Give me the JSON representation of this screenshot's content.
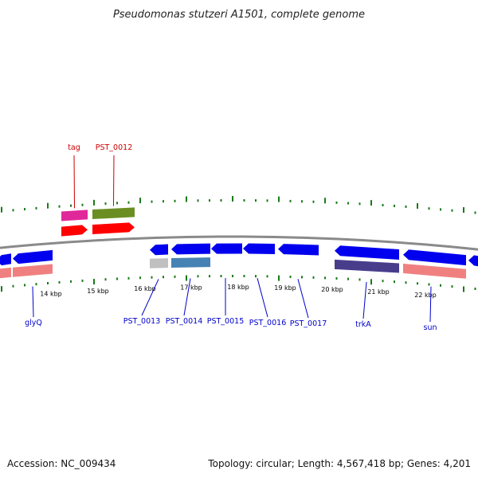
{
  "title": "Pseudomonas stutzeri A1501, complete genome",
  "footer": {
    "accession": "Accession: NC_009434",
    "summary": "Topology: circular; Length: 4,567,418 bp; Genes: 4,201"
  },
  "colors": {
    "backbone": "#8a8a8a",
    "gc_ticks": "#1a7a1a",
    "cds_forward": "#ff0000",
    "cds_reverse": "#0000ee",
    "forward_label": "#cc0000",
    "reverse_label": "#0000cc"
  },
  "scale_labels": [
    "14 kbp",
    "15 kbp",
    "16 kbp",
    "17 kbp",
    "18 kbp",
    "19 kbp",
    "20 kbp",
    "21 kbp",
    "22 kbp"
  ],
  "forward_genes": [
    {
      "name": "tag",
      "cds_color": "#ff0000",
      "feature_color": "#e0289a"
    },
    {
      "name": "PST_0012",
      "cds_color": "#ff0000",
      "feature_color": "#6b8e23"
    }
  ],
  "reverse_genes": [
    {
      "name": "",
      "cds_color": "#0000ee",
      "feature_color": "#f08080"
    },
    {
      "name": "glyQ",
      "cds_color": "#0000ee",
      "feature_color": "#f08080"
    },
    {
      "name": "PST_0013",
      "cds_color": "#0000ee",
      "feature_color": "#c0c0c0"
    },
    {
      "name": "PST_0014",
      "cds_color": "#0000ee",
      "feature_color": "#4682b4"
    },
    {
      "name": "PST_0015",
      "cds_color": "#0000ee",
      "feature_color": ""
    },
    {
      "name": "PST_0016",
      "cds_color": "#0000ee",
      "feature_color": ""
    },
    {
      "name": "PST_0017",
      "cds_color": "#0000ee",
      "feature_color": ""
    },
    {
      "name": "trkA",
      "cds_color": "#0000ee",
      "feature_color": "#483d8b"
    },
    {
      "name": "sun",
      "cds_color": "#0000ee",
      "feature_color": "#f08080"
    },
    {
      "name": "",
      "cds_color": "#0000ee",
      "feature_color": ""
    }
  ]
}
